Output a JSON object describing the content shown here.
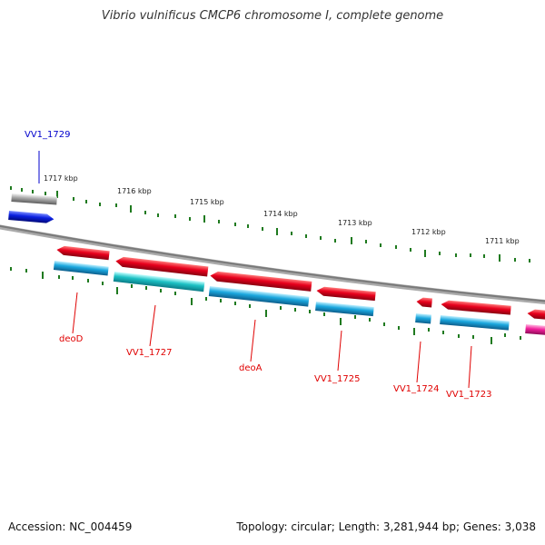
{
  "title": "Vibrio vulnificus CMCP6 chromosome I, complete genome",
  "footer": {
    "accession": "Accession: NC_004459",
    "summary": "Topology: circular; Length: 3,281,944 bp; Genes: 3,038"
  },
  "colors": {
    "backbone": "#7a7a7a",
    "tick": "#1f7a1f",
    "gene_red": "#e8001c",
    "cds_blue": "#1aa7de",
    "cds_teal": "#1cc1c4",
    "cds_pink": "#f01f9a",
    "gene_gray": "#a8a8a8",
    "gene_blue": "#0a1fe0",
    "label_red": "#e00000",
    "label_blue": "#0000cc"
  },
  "kbp_labels": [
    "1717 kbp",
    "1716 kbp",
    "1715 kbp",
    "1714 kbp",
    "1713 kbp",
    "1712 kbp",
    "1711 kbp"
  ],
  "genes": [
    {
      "name": "VV1_1729",
      "label_color": "blue",
      "strand": "forward"
    },
    {
      "name": "deoD",
      "label_color": "red",
      "strand": "reverse"
    },
    {
      "name": "VV1_1727",
      "label_color": "red",
      "strand": "reverse"
    },
    {
      "name": "deoA",
      "label_color": "red",
      "strand": "reverse"
    },
    {
      "name": "VV1_1725",
      "label_color": "red",
      "strand": "reverse"
    },
    {
      "name": "VV1_1724",
      "label_color": "red",
      "strand": "reverse"
    },
    {
      "name": "VV1_1723",
      "label_color": "red",
      "strand": "reverse"
    }
  ]
}
